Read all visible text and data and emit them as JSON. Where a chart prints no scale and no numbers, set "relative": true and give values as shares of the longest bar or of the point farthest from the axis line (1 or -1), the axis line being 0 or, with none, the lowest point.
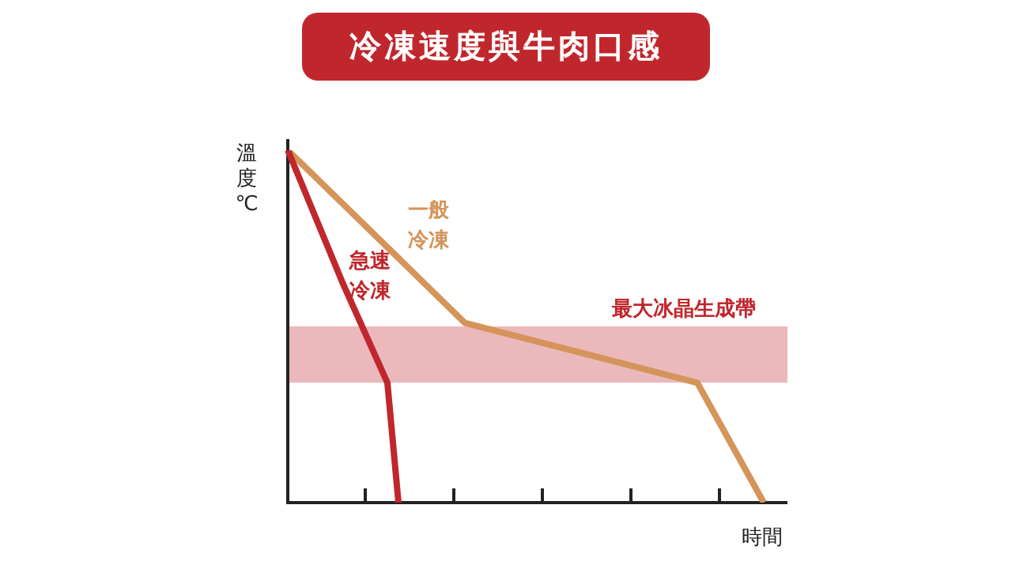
{
  "chart_data": {
    "type": "line",
    "title": "冷凍速度與牛肉口感",
    "xlabel": "時間",
    "ylabel": "溫度℃",
    "relative": true,
    "marker": "none",
    "categories": [
      null,
      null,
      null,
      null,
      null,
      null,
      null,
      null,
      null,
      null,
      null,
      null,
      null,
      null,
      null,
      null,
      null,
      null,
      null,
      null,
      null,
      null,
      null,
      null,
      null,
      null,
      null,
      null,
      null,
      null,
      null,
      null,
      null,
      null,
      null,
      null,
      null,
      null,
      null,
      null,
      null,
      null,
      null,
      null,
      null
    ],
    "series": [
      {
        "name": "急速冷凍",
        "color": "#c0272d",
        "values": [
          1,
          null,
          null,
          null,
          null,
          0.62,
          null,
          null,
          null,
          0.34,
          0,
          null,
          null,
          null,
          null,
          null,
          null,
          null,
          null,
          null,
          null,
          null,
          null,
          null,
          null,
          null,
          null,
          null,
          null,
          null,
          null,
          null,
          null,
          null,
          null,
          null,
          null,
          null,
          null,
          null,
          null,
          null,
          null,
          null,
          null
        ]
      },
      {
        "name": "一般冷凍",
        "color": "#d4945a",
        "values": [
          1,
          null,
          null,
          null,
          null,
          null,
          null,
          null,
          null,
          null,
          null,
          null,
          null,
          null,
          null,
          null,
          0.51,
          null,
          null,
          null,
          null,
          null,
          null,
          null,
          null,
          null,
          null,
          null,
          null,
          null,
          null,
          null,
          null,
          null,
          null,
          null,
          null,
          0.34,
          null,
          null,
          null,
          null,
          null,
          0,
          null
        ]
      }
    ],
    "bands": [
      {
        "axis": "y",
        "from": 0.34,
        "to": 0.5,
        "label": "最大冰晶生成帶",
        "color": "#ebb9bc"
      }
    ]
  }
}
